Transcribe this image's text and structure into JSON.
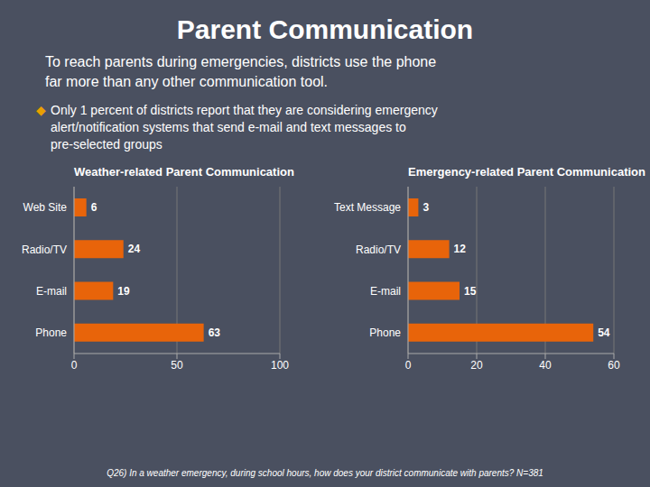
{
  "title": "Parent Communication",
  "subtitle": "To reach parents during emergencies, districts use the phone\nfar more than any other communication tool.",
  "annotations": [
    {
      "text": "◆",
      "color": "#e8a000"
    },
    {
      "text": "Only 1 percent of districts report that they are considering emergency\nalert/notification systems that send e-mail and text messages to\npre-selected groups"
    },
    {
      "text": "Q26) In a weather emergency, during school hours, how does your district communicate with parents? N=381"
    }
  ],
  "chart_data": [
    {
      "type": "bar",
      "orientation": "horizontal",
      "title": "Weather-related Parent Communication",
      "categories": [
        "Web Site",
        "Radio/TV",
        "E-mail",
        "Phone"
      ],
      "values": [
        6,
        24,
        19,
        63
      ],
      "color": "#e8640a",
      "xlim": [
        0,
        100
      ],
      "xticks": [
        0,
        50,
        100
      ],
      "grid": true,
      "data_labels": true
    },
    {
      "type": "bar",
      "orientation": "horizontal",
      "title": "Emergency-related Parent Communication",
      "categories": [
        "Text Message",
        "Radio/TV",
        "E-mail",
        "Phone"
      ],
      "values": [
        3,
        12,
        15,
        54
      ],
      "color": "#e8640a",
      "xlim": [
        0,
        60
      ],
      "xticks": [
        0,
        20,
        40,
        60
      ],
      "grid": true,
      "data_labels": true
    }
  ]
}
